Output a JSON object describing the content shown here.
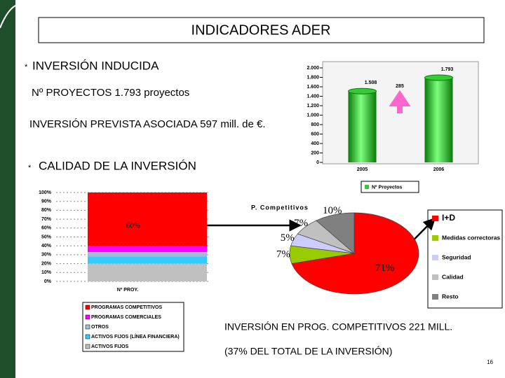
{
  "header": {
    "title": "INDICADORES ADER"
  },
  "sections": [
    {
      "bullet": "*",
      "text": "INVERSIÓN INDUCIDA"
    },
    {
      "text": "Nº PROYECTOS  1.793 proyectos"
    },
    {
      "text": "INVERSIÓN PREVISTA ASOCIADA 597 mill. de €."
    },
    {
      "bullet": "*",
      "text": "CALIDAD DE LA INVERSIÓN"
    },
    {
      "text": "INVERSIÓN EN PROG. COMPETITIVOS  221 MILL."
    },
    {
      "text": "(37% DEL TOTAL DE LA INVERSIÓN)"
    }
  ],
  "page_number": "16",
  "chart_data": [
    {
      "type": "bar",
      "categories": [
        "2005",
        "2006"
      ],
      "series": [
        {
          "name": "Nº Proyectos",
          "color": "#33cc33",
          "values": [
            1508,
            1793
          ],
          "value_labels": [
            "1.508",
            "1.793"
          ]
        }
      ],
      "ylim": [
        0,
        2000
      ],
      "yticks": [
        0,
        200,
        400,
        600,
        800,
        {
          "value": 1000,
          "label": "1.000"
        },
        {
          "value": 1200,
          "label": "1.200"
        },
        {
          "value": 1400,
          "label": "1.400"
        },
        {
          "value": 1600,
          "label": "1.600"
        },
        {
          "value": 1800,
          "label": "1.800"
        },
        {
          "value": 2000,
          "label": "2.000"
        }
      ],
      "annotation": "285",
      "grid": false
    },
    {
      "type": "stacked_bar",
      "categories": [
        "Nº PROY."
      ],
      "series": [
        {
          "name": "ACTIVOS FIJOS",
          "color": "#c0c0c0",
          "values": [
            20
          ]
        },
        {
          "name": "ACTIVOS FIJOS (LÍNEA FINANCIERA)",
          "color": "#33ccff",
          "values": [
            8
          ]
        },
        {
          "name": "OTROS",
          "color": "#a6b8d8",
          "values": [
            5
          ]
        },
        {
          "name": "PROGRAMAS COMERCIALES",
          "color": "#ff00ff",
          "values": [
            7
          ]
        },
        {
          "name": "PROGRAMAS COMPETITIVOS",
          "color": "#ff0000",
          "values": [
            60
          ],
          "value_labels": [
            "60%"
          ]
        }
      ],
      "ylim": [
        0,
        100
      ],
      "yticks": [
        {
          "value": 0,
          "label": "0%"
        },
        {
          "value": 10,
          "label": "10%"
        },
        {
          "value": 20,
          "label": "20%"
        },
        {
          "value": 30,
          "label": "30%"
        },
        {
          "value": 40,
          "label": "40%"
        },
        {
          "value": 50,
          "label": "50%"
        },
        {
          "value": 60,
          "label": "60%"
        },
        {
          "value": 70,
          "label": "70%"
        },
        {
          "value": 80,
          "label": "80%"
        },
        {
          "value": 90,
          "label": "90%"
        },
        {
          "value": 100,
          "label": "100%"
        }
      ],
      "grid": true
    },
    {
      "type": "pie",
      "title": "P. Competitivos",
      "categories": [
        "I+D",
        "Medidas correctoras",
        "Seguridad",
        "Calidad",
        "Resto"
      ],
      "values": [
        71,
        7,
        5,
        7,
        10
      ],
      "value_labels": [
        "71%",
        "7%",
        "5%",
        "7%",
        "10%"
      ],
      "colors": [
        "#ff0000",
        "#99cc00",
        "#ccccff",
        "#c0c0c0",
        "#808080"
      ]
    }
  ]
}
